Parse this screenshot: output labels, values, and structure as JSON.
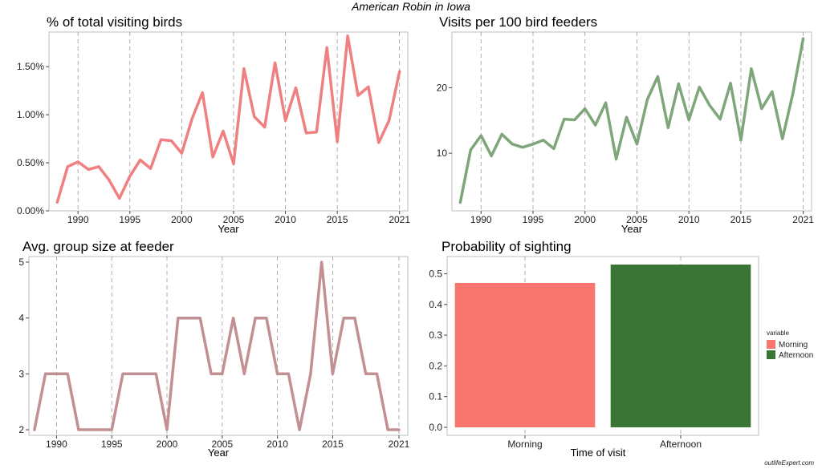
{
  "figure": {
    "suptitle": "American Robin in Iowa",
    "credit": "outlifeExpert.com"
  },
  "chart_data": [
    {
      "type": "line",
      "title": "% of total visiting birds",
      "xlabel": "Year",
      "ylabel": "",
      "color": "#f08080",
      "x_ticks": [
        1990,
        1995,
        2000,
        2005,
        2010,
        2015,
        2021
      ],
      "xlim": [
        1987.2,
        2021.8
      ],
      "y_ticks": [
        0,
        0.5,
        1.0,
        1.5
      ],
      "y_tick_labels": [
        "0.00%",
        "0.50%",
        "1.00%",
        "1.50%"
      ],
      "ylim": [
        0,
        1.86
      ],
      "x": [
        1988,
        1989,
        1990,
        1991,
        1992,
        1993,
        1994,
        1995,
        1996,
        1997,
        1998,
        1999,
        2000,
        2001,
        2002,
        2003,
        2004,
        2005,
        2006,
        2007,
        2008,
        2009,
        2010,
        2011,
        2012,
        2013,
        2014,
        2015,
        2016,
        2017,
        2018,
        2019,
        2020,
        2021
      ],
      "y": [
        0.09,
        0.46,
        0.51,
        0.43,
        0.46,
        0.32,
        0.13,
        0.36,
        0.53,
        0.44,
        0.74,
        0.73,
        0.6,
        0.96,
        1.23,
        0.56,
        0.83,
        0.49,
        1.48,
        0.98,
        0.87,
        1.54,
        0.94,
        1.28,
        0.81,
        0.82,
        1.7,
        0.72,
        1.82,
        1.2,
        1.29,
        0.71,
        0.94,
        1.45
      ]
    },
    {
      "type": "line",
      "title": "Visits per 100 bird feeders",
      "xlabel": "Year",
      "ylabel": "",
      "color": "#7fa57a",
      "x_ticks": [
        1990,
        1995,
        2000,
        2005,
        2010,
        2015,
        2021
      ],
      "xlim": [
        1987.2,
        2021.8
      ],
      "y_ticks": [
        10,
        20
      ],
      "y_tick_labels": [
        "10",
        "20"
      ],
      "ylim": [
        1.2,
        28.5
      ],
      "x": [
        1988,
        1989,
        1990,
        1991,
        1992,
        1993,
        1994,
        1995,
        1996,
        1997,
        1998,
        1999,
        2000,
        2001,
        2002,
        2003,
        2004,
        2005,
        2006,
        2007,
        2008,
        2009,
        2010,
        2011,
        2012,
        2013,
        2014,
        2015,
        2016,
        2017,
        2018,
        2019,
        2020,
        2021
      ],
      "y": [
        2.5,
        10.5,
        12.7,
        9.6,
        12.9,
        11.4,
        10.9,
        11.4,
        12.0,
        10.7,
        15.2,
        15.1,
        16.8,
        14.3,
        17.7,
        9.1,
        15.5,
        11.4,
        18.2,
        21.7,
        13.9,
        20.6,
        15.1,
        20.1,
        17.3,
        15.2,
        20.7,
        12.0,
        22.9,
        16.8,
        19.4,
        12.2,
        19.1,
        27.5
      ]
    },
    {
      "type": "line",
      "title": "Avg. group size at feeder",
      "xlabel": "Year",
      "ylabel": "",
      "color": "#c28f93",
      "x_ticks": [
        1990,
        1995,
        2000,
        2005,
        2010,
        2015,
        2021
      ],
      "xlim": [
        1987.5,
        2021.8
      ],
      "y_ticks": [
        2,
        3,
        4,
        5
      ],
      "y_tick_labels": [
        "2",
        "3",
        "4",
        "5"
      ],
      "ylim": [
        1.9,
        5.1
      ],
      "x": [
        1988,
        1989,
        1990,
        1991,
        1992,
        1993,
        1994,
        1995,
        1996,
        1997,
        1998,
        1999,
        2000,
        2001,
        2002,
        2003,
        2004,
        2005,
        2006,
        2007,
        2008,
        2009,
        2010,
        2011,
        2012,
        2013,
        2014,
        2015,
        2016,
        2017,
        2018,
        2019,
        2020,
        2021
      ],
      "y": [
        2,
        3,
        3,
        3,
        2,
        2,
        2,
        2,
        3,
        3,
        3,
        3,
        2,
        4,
        4,
        4,
        3,
        3,
        4,
        3,
        4,
        4,
        3,
        3,
        2,
        3,
        5,
        3,
        4,
        4,
        3,
        3,
        2,
        2
      ]
    },
    {
      "type": "bar",
      "title": "Probability of sighting",
      "xlabel": "Time of visit",
      "ylabel": "",
      "categories": [
        "Morning",
        "Afternoon"
      ],
      "values": [
        0.47,
        0.53
      ],
      "colors": [
        "#f8766d",
        "#3a7535"
      ],
      "y_ticks": [
        0,
        0.1,
        0.2,
        0.3,
        0.4,
        0.5
      ],
      "y_tick_labels": [
        "0.0",
        "0.1",
        "0.2",
        "0.3",
        "0.4",
        "0.5"
      ],
      "ylim": [
        -0.026,
        0.556
      ],
      "legend": {
        "title": "variable",
        "entries": [
          "Morning",
          "Afternoon"
        ],
        "placement": "right"
      }
    }
  ]
}
